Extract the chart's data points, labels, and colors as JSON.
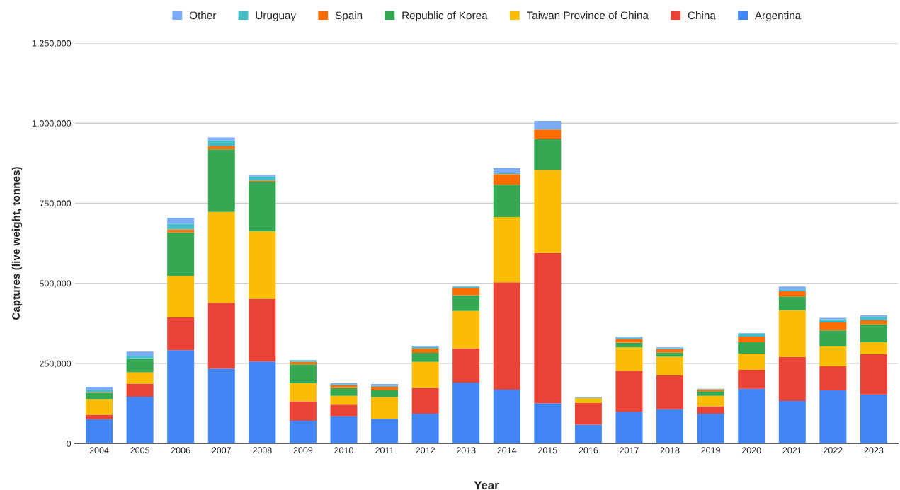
{
  "chart_data": {
    "type": "bar",
    "stacked": true,
    "xlabel": "Year",
    "ylabel": "Captures (live weight, tonnes)",
    "categories": [
      "2004",
      "2005",
      "2006",
      "2007",
      "2008",
      "2009",
      "2010",
      "2011",
      "2012",
      "2013",
      "2014",
      "2015",
      "2016",
      "2017",
      "2018",
      "2019",
      "2020",
      "2021",
      "2022",
      "2023"
    ],
    "series": [
      {
        "name": "Argentina",
        "color": "#4285f4",
        "values": [
          76000,
          146000,
          291000,
          234000,
          256000,
          71000,
          85000,
          77000,
          93000,
          190000,
          168000,
          125000,
          59000,
          99000,
          107000,
          93000,
          171000,
          133000,
          166000,
          153000
        ]
      },
      {
        "name": "China",
        "color": "#ea4335",
        "values": [
          14000,
          41000,
          103000,
          205000,
          196000,
          61000,
          36000,
          null,
          80000,
          107000,
          335000,
          470000,
          68000,
          128000,
          106000,
          23000,
          59000,
          137000,
          75000,
          126000
        ]
      },
      {
        "name": "Taiwan Province of China",
        "color": "#fbbc04",
        "values": [
          48000,
          35000,
          129000,
          284000,
          210000,
          56000,
          28000,
          68000,
          82000,
          117000,
          204000,
          259000,
          14000,
          73000,
          58000,
          33000,
          51000,
          146000,
          62000,
          37000
        ]
      },
      {
        "name": "Republic of Korea",
        "color": "#34a853",
        "values": [
          20000,
          42000,
          136000,
          195000,
          155000,
          59000,
          24000,
          22000,
          28000,
          49000,
          101000,
          97000,
          null,
          15000,
          13000,
          14000,
          35000,
          43000,
          50000,
          56000
        ]
      },
      {
        "name": "Spain",
        "color": "#ff6d01",
        "values": [
          2000,
          null,
          9000,
          11000,
          4000,
          8000,
          9000,
          10000,
          13000,
          22000,
          33000,
          29000,
          1000,
          11000,
          10000,
          5000,
          18000,
          16000,
          25000,
          13000
        ]
      },
      {
        "name": "Uruguay",
        "color": "#46bdc6",
        "values": [
          7000,
          10000,
          18000,
          17000,
          13000,
          4000,
          3000,
          3000,
          5000,
          4000,
          4000,
          null,
          2000,
          4000,
          3000,
          2000,
          9000,
          6000,
          10000,
          11000
        ]
      },
      {
        "name": "Other",
        "color": "#7baaf7",
        "values": [
          10000,
          13000,
          18000,
          9000,
          4000,
          2000,
          3000,
          6000,
          4000,
          2000,
          15000,
          27000,
          1000,
          3000,
          3000,
          1000,
          2000,
          9000,
          4000,
          4000
        ]
      }
    ],
    "ylim": [
      0,
      1250000
    ],
    "yticks": [
      0,
      {
        "value": 250000,
        "label": "250,000"
      },
      {
        "value": 500000,
        "label": "500,000"
      },
      {
        "value": 750000,
        "label": "750,000"
      },
      {
        "value": 1000000,
        "label": "1,000,000"
      },
      {
        "value": 1250000,
        "label": "1,250,000"
      }
    ],
    "grid": "y",
    "legend": "top"
  }
}
